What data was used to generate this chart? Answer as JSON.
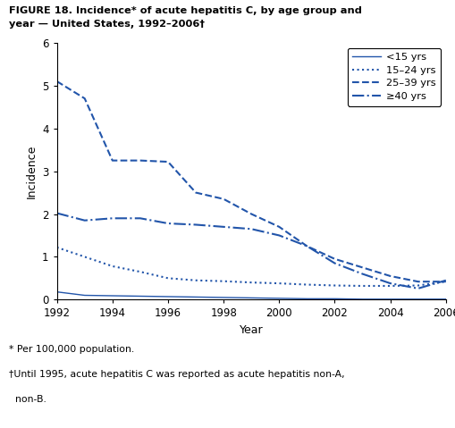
{
  "years": [
    1992,
    1993,
    1994,
    1995,
    1996,
    1997,
    1998,
    1999,
    2000,
    2001,
    2002,
    2003,
    2004,
    2005,
    2006
  ],
  "lt15": [
    0.18,
    0.1,
    0.09,
    0.08,
    0.07,
    0.06,
    0.05,
    0.04,
    0.03,
    0.02,
    0.02,
    0.01,
    0.01,
    0.01,
    0.01
  ],
  "age15_24": [
    1.22,
    1.0,
    0.78,
    0.65,
    0.5,
    0.45,
    0.43,
    0.4,
    0.38,
    0.35,
    0.33,
    0.32,
    0.32,
    0.33,
    0.42
  ],
  "age25_39": [
    5.1,
    4.7,
    3.25,
    3.25,
    3.22,
    2.5,
    2.35,
    2.0,
    1.7,
    1.25,
    0.95,
    0.75,
    0.55,
    0.42,
    0.42
  ],
  "age40plus": [
    2.02,
    1.85,
    1.9,
    1.9,
    1.78,
    1.75,
    1.7,
    1.65,
    1.5,
    1.25,
    0.85,
    0.6,
    0.38,
    0.26,
    0.45
  ],
  "line_color": "#2255aa",
  "title_line1": "FIGURE 18. Incidence* of acute hepatitis C, by age group and",
  "title_line2": "year — United States, 1992–2006†",
  "ylabel": "Incidence",
  "xlabel": "Year",
  "ylim": [
    0,
    6
  ],
  "xlim": [
    1992,
    2006
  ],
  "yticks": [
    0,
    1,
    2,
    3,
    4,
    5,
    6
  ],
  "xticks": [
    1992,
    1994,
    1996,
    1998,
    2000,
    2002,
    2004,
    2006
  ],
  "footnote1": "* Per 100,000 population.",
  "footnote2": "†Until 1995, acute hepatitis C was reported as acute hepatitis non-A,",
  "footnote3": "  non-B.",
  "legend_labels": [
    "<15 yrs",
    "15–24 yrs",
    "25–39 yrs",
    "≥40 yrs"
  ]
}
